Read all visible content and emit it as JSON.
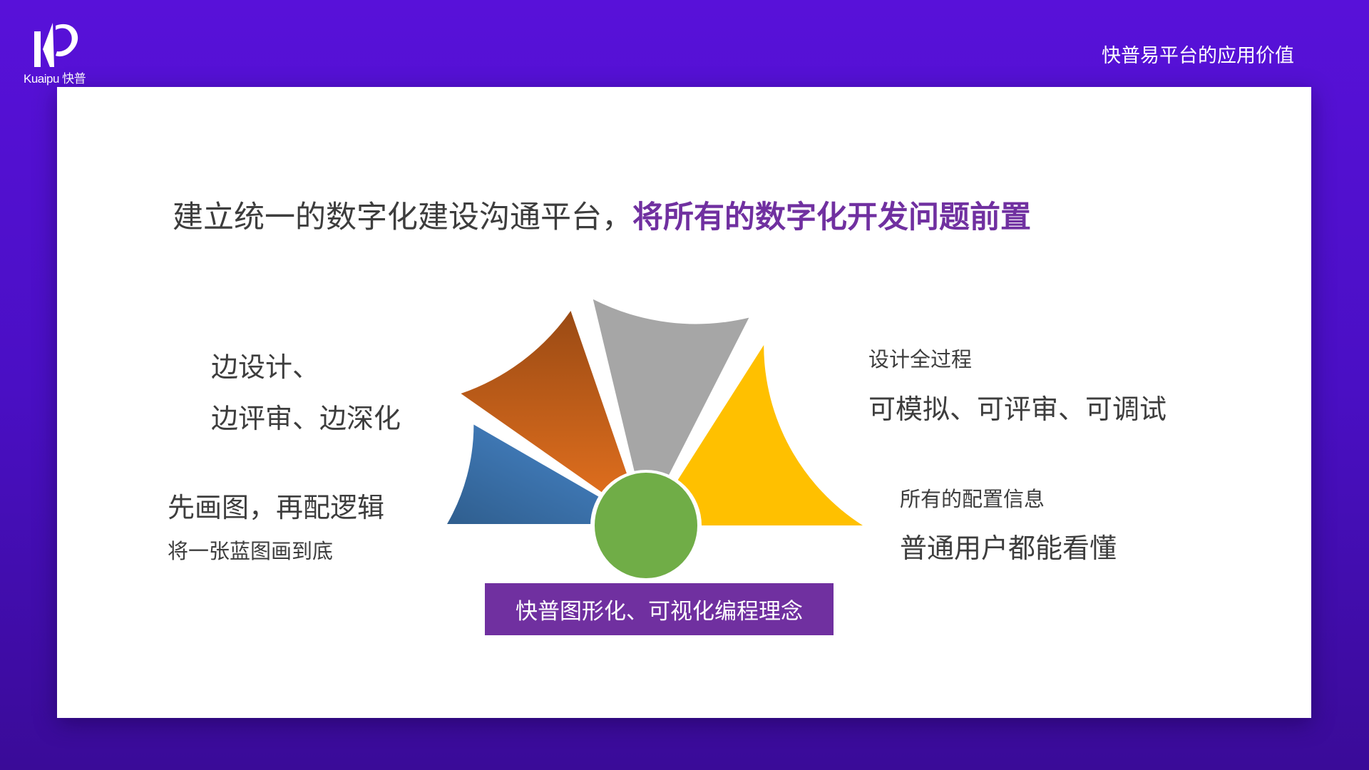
{
  "header": {
    "logo_text": "Kuaipu 快普",
    "title": "快普易平台的应用价值"
  },
  "main": {
    "title_plain": "建立统一的数字化建设沟通平台，",
    "title_highlight": "将所有的数字化开发问题前置",
    "left_top": {
      "line1": "边设计、",
      "line2": "边评审、边深化"
    },
    "left_bottom": {
      "line1": "先画图，再配逻辑",
      "line2": "将一张蓝图画到底"
    },
    "right_top": {
      "line1": "设计全过程",
      "line2": "可模拟、可评审、可调试"
    },
    "right_bottom": {
      "line1": "所有的配置信息",
      "line2": "普通用户都能看懂"
    },
    "banner": "快普图形化、可视化编程理念"
  },
  "colors": {
    "background": "#5811d9",
    "accent": "#7030a0",
    "sector_blue": [
      "#2f5e8e",
      "#4a8ad0"
    ],
    "sector_orange": [
      "#9a4a14",
      "#e8731f"
    ],
    "sector_gray": "#a6a6a6",
    "sector_yellow": "#ffc000",
    "center_circle": "#70ad47"
  }
}
